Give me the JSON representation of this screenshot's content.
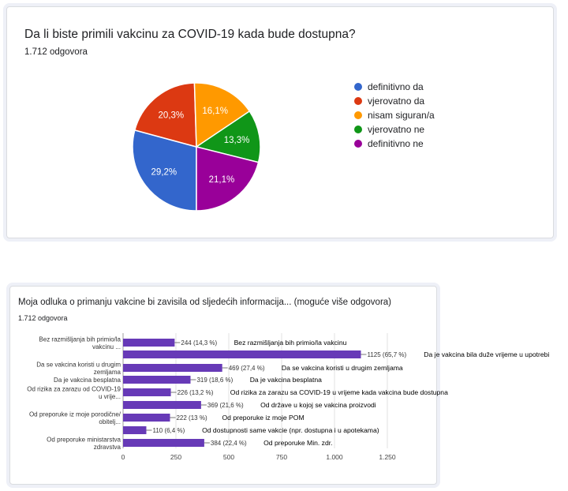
{
  "card1": {
    "title": "Da li biste primili vakcinu za COVID-19 kada bude dostupna?",
    "responses": "1.712 odgovora"
  },
  "card2": {
    "title": "Moja odluka o primanju vakcine bi zavisila od sljedećih informacija... (moguće više odgovora)",
    "responses": "1.712 odgovora"
  },
  "chart_data": [
    {
      "type": "pie",
      "title": "Da li biste primili vakcinu za COVID-19 kada bude dostupna?",
      "legend_position": "right",
      "slices": [
        {
          "label": "definitivno da",
          "value": 29.2,
          "display": "29,2%",
          "color": "#3366cc"
        },
        {
          "label": "vjerovatno da",
          "value": 20.3,
          "display": "20,3%",
          "color": "#dc3912"
        },
        {
          "label": "nisam siguran/a",
          "value": 16.1,
          "display": "16,1%",
          "color": "#ff9900"
        },
        {
          "label": "vjerovatno ne",
          "value": 13.3,
          "display": "13,3%",
          "color": "#109618"
        },
        {
          "label": "definitivno ne",
          "value": 21.1,
          "display": "21,1%",
          "color": "#990099"
        }
      ]
    },
    {
      "type": "bar",
      "orientation": "horizontal",
      "title": "Moja odluka o primanju vakcine bi zavisila od sljedećih informacija... (moguće više odgovora)",
      "xlim": [
        0,
        1250
      ],
      "xticks": [
        "0",
        "250",
        "500",
        "750",
        "1.000",
        "1.250"
      ],
      "bar_color": "#673ab7",
      "bars": [
        {
          "category": [
            "Bez razmišljanja bih primio/la",
            "vakcinu ..."
          ],
          "value": 244,
          "value_label": "244 (14,3 %)",
          "annotation": "Bez razmišljanja bih primio/la vakcinu"
        },
        {
          "category": [],
          "value": 1125,
          "value_label": "1125 (65,7 %)",
          "annotation": "Da je vakcina bila duže vrijeme u upotrebi"
        },
        {
          "category": [
            "Da se vakcina koristi u drugim",
            "zemljama"
          ],
          "value": 469,
          "value_label": "469 (27,4 %)",
          "annotation": "Da se vakcina koristi u drugim zemljama"
        },
        {
          "category": [
            "Da je vakcina besplatna"
          ],
          "value": 319,
          "value_label": "319 (18,6 %)",
          "annotation": "Da je vakcina besplatna"
        },
        {
          "category": [
            "Od rizika za zarazu od COVID-19",
            "u vrije..."
          ],
          "value": 226,
          "value_label": "226 (13,2 %)",
          "annotation": "Od rizika za zarazu sa COVID-19 u vrijeme kada vakcina bude dostupna"
        },
        {
          "category": [],
          "value": 369,
          "value_label": "369 (21,6 %)",
          "annotation": "Od države u kojoj se vakcina proizvodi"
        },
        {
          "category": [
            "Od preporuke iz moje porodične/",
            "obitelj..."
          ],
          "value": 222,
          "value_label": "222 (13 %)",
          "annotation": "Od preporuke iz moje POM"
        },
        {
          "category": [],
          "value": 110,
          "value_label": "110 (6,4 %)",
          "annotation": "Od dostupnosti same vakcie (npr. dostupna i u apotekama)"
        },
        {
          "category": [
            "Od preporuke ministarstva",
            "zdravstva"
          ],
          "value": 384,
          "value_label": "384 (22,4 %)",
          "annotation": "Od preporuke Min. zdr."
        }
      ]
    }
  ]
}
